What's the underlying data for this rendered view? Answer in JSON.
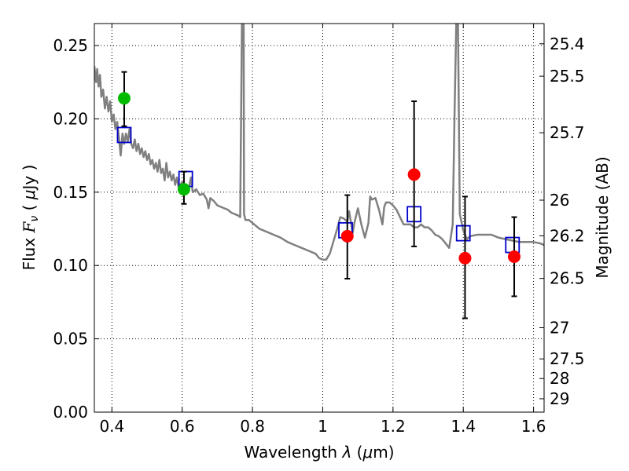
{
  "chart_data": {
    "type": "scatter",
    "xlabel": "Wavelength  λ (μm)",
    "ylabel": "Flux  F_ν  ( μJy )",
    "ylabel_parts": {
      "pre": "Flux  ",
      "symbol": "F",
      "sub": "ν",
      "unit_open": "  ( ",
      "mu": "μ",
      "unit_close": "Jy )"
    },
    "xlabel_parts": {
      "pre": "Wavelength  ",
      "lambda": "λ",
      "unit_open": " (",
      "mu": "μ",
      "unit_close": "m)"
    },
    "y2label": "Magnitude (AB)",
    "xlim": [
      0.35,
      1.63
    ],
    "ylim": [
      0.0,
      0.265
    ],
    "grid": true,
    "x_ticks": [
      {
        "value": 0.4,
        "label": "0.4"
      },
      {
        "value": 0.6,
        "label": "0.6"
      },
      {
        "value": 0.8,
        "label": "0.8"
      },
      {
        "value": 1.0,
        "label": "1"
      },
      {
        "value": 1.2,
        "label": "1.2"
      },
      {
        "value": 1.4,
        "label": "1.4"
      },
      {
        "value": 1.6,
        "label": "1.6"
      }
    ],
    "y_ticks": [
      {
        "value": 0.0,
        "label": "0.00"
      },
      {
        "value": 0.05,
        "label": "0.05"
      },
      {
        "value": 0.1,
        "label": "0.10"
      },
      {
        "value": 0.15,
        "label": "0.15"
      },
      {
        "value": 0.2,
        "label": "0.20"
      },
      {
        "value": 0.25,
        "label": "0.25"
      }
    ],
    "y2_ticks": [
      {
        "value": 25.4,
        "label": "25.4"
      },
      {
        "value": 25.5,
        "label": "25.5"
      },
      {
        "value": 25.7,
        "label": "25.7"
      },
      {
        "value": 26.0,
        "label": "26"
      },
      {
        "value": 26.2,
        "label": "26.2"
      },
      {
        "value": 26.5,
        "label": "26.5"
      },
      {
        "value": 27.0,
        "label": "27"
      },
      {
        "value": 27.5,
        "label": "27.5"
      },
      {
        "value": 28.0,
        "label": "28"
      },
      {
        "value": 29.0,
        "label": "29"
      }
    ],
    "colors": {
      "spectrum": "#808080",
      "optical_points": "#00bb00",
      "nir_points": "#ff0000",
      "model_boxes": "#0000cc",
      "errorbar": "#000000",
      "grid": "#000000"
    },
    "series": [
      {
        "kind": "line",
        "points": [
          [
            0.35,
            0.236
          ],
          [
            0.355,
            0.225
          ],
          [
            0.358,
            0.234
          ],
          [
            0.362,
            0.222
          ],
          [
            0.366,
            0.23
          ],
          [
            0.37,
            0.215
          ],
          [
            0.375,
            0.22
          ],
          [
            0.38,
            0.207
          ],
          [
            0.385,
            0.215
          ],
          [
            0.39,
            0.205
          ],
          [
            0.395,
            0.212
          ],
          [
            0.4,
            0.198
          ],
          [
            0.405,
            0.203
          ],
          [
            0.41,
            0.193
          ],
          [
            0.415,
            0.198
          ],
          [
            0.42,
            0.187
          ],
          [
            0.425,
            0.175
          ],
          [
            0.43,
            0.19
          ],
          [
            0.435,
            0.183
          ],
          [
            0.44,
            0.19
          ],
          [
            0.445,
            0.184
          ],
          [
            0.45,
            0.193
          ],
          [
            0.455,
            0.183
          ],
          [
            0.46,
            0.18
          ],
          [
            0.465,
            0.186
          ],
          [
            0.47,
            0.178
          ],
          [
            0.475,
            0.183
          ],
          [
            0.48,
            0.176
          ],
          [
            0.485,
            0.18
          ],
          [
            0.49,
            0.174
          ],
          [
            0.495,
            0.178
          ],
          [
            0.5,
            0.172
          ],
          [
            0.505,
            0.176
          ],
          [
            0.51,
            0.169
          ],
          [
            0.515,
            0.172
          ],
          [
            0.52,
            0.166
          ],
          [
            0.525,
            0.17
          ],
          [
            0.53,
            0.164
          ],
          [
            0.535,
            0.172
          ],
          [
            0.54,
            0.163
          ],
          [
            0.545,
            0.166
          ],
          [
            0.55,
            0.158
          ],
          [
            0.555,
            0.17
          ],
          [
            0.56,
            0.16
          ],
          [
            0.565,
            0.164
          ],
          [
            0.57,
            0.158
          ],
          [
            0.575,
            0.162
          ],
          [
            0.58,
            0.155
          ],
          [
            0.585,
            0.16
          ],
          [
            0.59,
            0.153
          ],
          [
            0.6,
            0.157
          ],
          [
            0.61,
            0.152
          ],
          [
            0.62,
            0.154
          ],
          [
            0.625,
            0.16
          ],
          [
            0.63,
            0.15
          ],
          [
            0.64,
            0.152
          ],
          [
            0.65,
            0.148
          ],
          [
            0.66,
            0.149
          ],
          [
            0.67,
            0.145
          ],
          [
            0.675,
            0.139
          ],
          [
            0.68,
            0.146
          ],
          [
            0.69,
            0.144
          ],
          [
            0.7,
            0.141
          ],
          [
            0.71,
            0.14
          ],
          [
            0.72,
            0.139
          ],
          [
            0.73,
            0.138
          ],
          [
            0.74,
            0.136
          ],
          [
            0.75,
            0.135
          ],
          [
            0.76,
            0.134
          ],
          [
            0.765,
            0.133
          ],
          [
            0.77,
            0.265
          ],
          [
            0.775,
            0.265
          ],
          [
            0.776,
            0.135
          ],
          [
            0.78,
            0.131
          ],
          [
            0.79,
            0.131
          ],
          [
            0.8,
            0.129
          ],
          [
            0.81,
            0.127
          ],
          [
            0.82,
            0.125
          ],
          [
            0.84,
            0.123
          ],
          [
            0.86,
            0.121
          ],
          [
            0.88,
            0.119
          ],
          [
            0.9,
            0.116
          ],
          [
            0.92,
            0.114
          ],
          [
            0.94,
            0.112
          ],
          [
            0.96,
            0.11
          ],
          [
            0.98,
            0.108
          ],
          [
            0.99,
            0.105
          ],
          [
            1.0,
            0.104
          ],
          [
            1.01,
            0.104
          ],
          [
            1.02,
            0.108
          ],
          [
            1.03,
            0.116
          ],
          [
            1.04,
            0.124
          ],
          [
            1.05,
            0.133
          ],
          [
            1.06,
            0.132
          ],
          [
            1.07,
            0.13
          ],
          [
            1.075,
            0.137
          ],
          [
            1.08,
            0.13
          ],
          [
            1.085,
            0.122
          ],
          [
            1.09,
            0.129
          ],
          [
            1.1,
            0.139
          ],
          [
            1.11,
            0.128
          ],
          [
            1.12,
            0.119
          ],
          [
            1.13,
            0.129
          ],
          [
            1.135,
            0.147
          ],
          [
            1.14,
            0.145
          ],
          [
            1.15,
            0.146
          ],
          [
            1.16,
            0.138
          ],
          [
            1.17,
            0.128
          ],
          [
            1.175,
            0.14
          ],
          [
            1.18,
            0.143
          ],
          [
            1.19,
            0.143
          ],
          [
            1.2,
            0.141
          ],
          [
            1.21,
            0.138
          ],
          [
            1.22,
            0.133
          ],
          [
            1.23,
            0.128
          ],
          [
            1.24,
            0.128
          ],
          [
            1.25,
            0.128
          ],
          [
            1.26,
            0.126
          ],
          [
            1.27,
            0.126
          ],
          [
            1.28,
            0.128
          ],
          [
            1.29,
            0.126
          ],
          [
            1.3,
            0.126
          ],
          [
            1.31,
            0.124
          ],
          [
            1.32,
            0.121
          ],
          [
            1.33,
            0.12
          ],
          [
            1.34,
            0.118
          ],
          [
            1.35,
            0.115
          ],
          [
            1.36,
            0.112
          ],
          [
            1.37,
            0.128
          ],
          [
            1.375,
            0.2
          ],
          [
            1.38,
            0.265
          ],
          [
            1.385,
            0.265
          ],
          [
            1.39,
            0.135
          ],
          [
            1.4,
            0.124
          ],
          [
            1.41,
            0.118
          ],
          [
            1.42,
            0.12
          ],
          [
            1.44,
            0.121
          ],
          [
            1.46,
            0.121
          ],
          [
            1.48,
            0.121
          ],
          [
            1.5,
            0.119
          ],
          [
            1.52,
            0.118
          ],
          [
            1.54,
            0.117
          ],
          [
            1.56,
            0.116
          ],
          [
            1.58,
            0.116
          ],
          [
            1.6,
            0.116
          ],
          [
            1.62,
            0.115
          ],
          [
            1.63,
            0.114
          ]
        ]
      },
      {
        "kind": "errorbar-points",
        "points": [
          {
            "x": 0.435,
            "y": 0.214,
            "lo": 0.195,
            "hi": 0.232
          },
          {
            "x": 0.605,
            "y": 0.152,
            "lo": 0.142,
            "hi": 0.164
          }
        ]
      },
      {
        "kind": "errorbar-points",
        "points": [
          {
            "x": 1.07,
            "y": 0.12,
            "lo": 0.091,
            "hi": 0.148
          },
          {
            "x": 1.26,
            "y": 0.162,
            "lo": 0.113,
            "hi": 0.212
          },
          {
            "x": 1.405,
            "y": 0.105,
            "lo": 0.064,
            "hi": 0.147
          },
          {
            "x": 1.545,
            "y": 0.106,
            "lo": 0.079,
            "hi": 0.133
          }
        ]
      },
      {
        "kind": "boxes",
        "points": [
          {
            "x": 0.435,
            "y": 0.189
          },
          {
            "x": 0.61,
            "y": 0.159
          },
          {
            "x": 1.065,
            "y": 0.124
          },
          {
            "x": 1.26,
            "y": 0.135
          },
          {
            "x": 1.4,
            "y": 0.122
          },
          {
            "x": 1.54,
            "y": 0.114
          }
        ]
      }
    ]
  }
}
